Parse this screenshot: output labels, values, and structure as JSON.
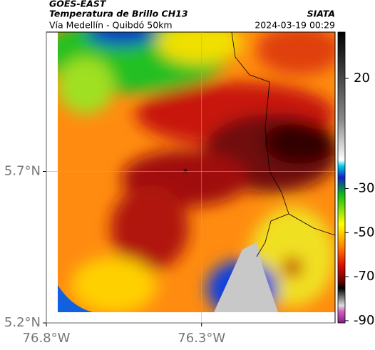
{
  "header": {
    "source": "GOES-EAST",
    "title": "Temperatura de Brillo CH13",
    "subtitle": "Vía Medellín - Quibdó 50km",
    "brand": "SIATA",
    "timestamp": "2024-03-19 00:29"
  },
  "map": {
    "lat_lim": [
      5.2,
      6.16
    ],
    "lon_lim": [
      -76.8,
      -75.87
    ],
    "lat_ticks": [
      {
        "value": 5.7,
        "label": "5.7°N"
      },
      {
        "value": 5.2,
        "label": "5.2°N"
      }
    ],
    "lon_ticks": [
      {
        "value": -76.8,
        "label": "76.8°W"
      },
      {
        "value": -76.3,
        "label": "76.3°W"
      }
    ]
  },
  "colorbar": {
    "lim": [
      -91,
      41
    ],
    "ticks": [
      20,
      -30,
      -50,
      -70,
      -90
    ]
  }
}
